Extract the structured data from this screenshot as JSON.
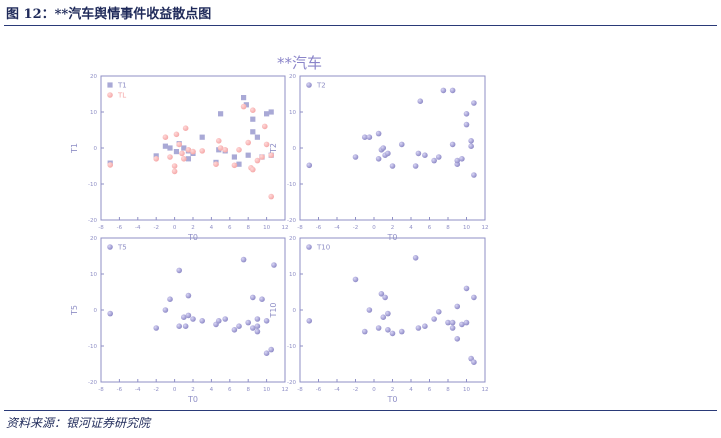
{
  "figure_title": "图 12：**汽车舆情事件收益散点图",
  "source_note": "资料来源：银河证券研究院",
  "suptitle": "**汽车",
  "colors": {
    "axis": "#8f8fc6",
    "marker": "#8a86c4",
    "marker_light": "#b0acdf",
    "T1": "#a9a9d6",
    "TL": "#f4a6a6"
  },
  "chart_data": [
    {
      "type": "scatter",
      "xlabel": "T0",
      "ylabel": "T1",
      "xlim": [
        -8,
        12
      ],
      "ylim": [
        -20,
        20
      ],
      "xticks": [
        "-8",
        "-6",
        "-4",
        "-2",
        "0",
        "2",
        "4",
        "6",
        "8",
        "10",
        "12"
      ],
      "yticks": [
        "-20",
        "-10",
        "0",
        "10",
        "20"
      ],
      "legend": "top-left",
      "series": [
        {
          "name": "T1",
          "marker": "square",
          "color": "#a9a9d6",
          "points": [
            [
              -7,
              -4.2
            ],
            [
              -2,
              -2.2
            ],
            [
              -1,
              0.5
            ],
            [
              -0.5,
              0
            ],
            [
              0.2,
              -1
            ],
            [
              0.5,
              1.2
            ],
            [
              1,
              0
            ],
            [
              1.5,
              -3
            ],
            [
              1.5,
              -0.8
            ],
            [
              2,
              -1.5
            ],
            [
              3,
              3
            ],
            [
              4.5,
              -4
            ],
            [
              4.8,
              -0.5
            ],
            [
              5,
              9.5
            ],
            [
              5.5,
              -0.8
            ],
            [
              6.5,
              -2.5
            ],
            [
              7,
              -4.5
            ],
            [
              7.5,
              14
            ],
            [
              7.8,
              12
            ],
            [
              8,
              -2
            ],
            [
              8.5,
              8
            ],
            [
              8.5,
              4.5
            ],
            [
              9,
              3
            ],
            [
              9.5,
              -2.5
            ],
            [
              10,
              9.5
            ],
            [
              10.5,
              10
            ],
            [
              10.5,
              -2
            ]
          ]
        },
        {
          "name": "TL",
          "marker": "circle",
          "color": "#f4a6a6",
          "points": [
            [
              -7,
              -4.7
            ],
            [
              -2,
              -3
            ],
            [
              -1,
              3
            ],
            [
              -0.5,
              -2.5
            ],
            [
              0,
              -5
            ],
            [
              0,
              -6.5
            ],
            [
              0.2,
              3.8
            ],
            [
              0.5,
              1
            ],
            [
              0.8,
              -1.5
            ],
            [
              1,
              -3
            ],
            [
              1.2,
              5.5
            ],
            [
              1.5,
              -0.5
            ],
            [
              2,
              -1
            ],
            [
              3,
              -0.8
            ],
            [
              4.5,
              -4.5
            ],
            [
              4.8,
              2
            ],
            [
              5,
              0
            ],
            [
              5.5,
              -0.5
            ],
            [
              6.5,
              -4.8
            ],
            [
              7,
              -0.5
            ],
            [
              7.5,
              11.5
            ],
            [
              8,
              1.5
            ],
            [
              8.3,
              -5.5
            ],
            [
              8.5,
              -6
            ],
            [
              8.5,
              10.5
            ],
            [
              9,
              -3.5
            ],
            [
              9.5,
              -2.5
            ],
            [
              9.8,
              6
            ],
            [
              10,
              1
            ],
            [
              10.5,
              -2
            ],
            [
              10.5,
              -13.5
            ]
          ]
        }
      ]
    },
    {
      "type": "scatter",
      "xlabel": "T0",
      "ylabel": "T2",
      "xlim": [
        -8,
        12
      ],
      "ylim": [
        -20,
        20
      ],
      "xticks": [
        "-8",
        "-6",
        "-4",
        "-2",
        "0",
        "2",
        "4",
        "6",
        "8",
        "10",
        "12"
      ],
      "yticks": [
        "-20",
        "-10",
        "0",
        "10",
        "20"
      ],
      "legend": "top-left",
      "series": [
        {
          "name": "T2",
          "marker": "circle",
          "color": "#8a86c4",
          "points": [
            [
              -7,
              -4.8
            ],
            [
              -2,
              -2.5
            ],
            [
              -1,
              3
            ],
            [
              -0.5,
              3
            ],
            [
              0.5,
              -3
            ],
            [
              0.5,
              4
            ],
            [
              0.8,
              -0.5
            ],
            [
              1,
              0
            ],
            [
              1.2,
              -2
            ],
            [
              1.5,
              -1.5
            ],
            [
              2,
              -5
            ],
            [
              3,
              1
            ],
            [
              4.5,
              -5
            ],
            [
              4.8,
              -1.5
            ],
            [
              5,
              13
            ],
            [
              5.5,
              -2
            ],
            [
              6.5,
              -3.5
            ],
            [
              7,
              -2.5
            ],
            [
              7.5,
              16
            ],
            [
              8.5,
              16
            ],
            [
              8.5,
              1
            ],
            [
              9,
              -4.5
            ],
            [
              9,
              -3.5
            ],
            [
              9.5,
              -3
            ],
            [
              10,
              6.5
            ],
            [
              10,
              9.5
            ],
            [
              10.5,
              2
            ],
            [
              10.5,
              0.5
            ],
            [
              10.8,
              -7.5
            ],
            [
              10.8,
              12.5
            ]
          ]
        }
      ]
    },
    {
      "type": "scatter",
      "xlabel": "T0",
      "ylabel": "T5",
      "xlim": [
        -8,
        12
      ],
      "ylim": [
        -20,
        20
      ],
      "xticks": [
        "-8",
        "-6",
        "-4",
        "-2",
        "0",
        "2",
        "4",
        "6",
        "8",
        "10",
        "12"
      ],
      "yticks": [
        "-20",
        "-10",
        "0",
        "10",
        "20"
      ],
      "legend": "top-left",
      "series": [
        {
          "name": "T5",
          "marker": "circle",
          "color": "#8a86c4",
          "points": [
            [
              -7,
              -1
            ],
            [
              -2,
              -5
            ],
            [
              -1,
              0
            ],
            [
              -0.5,
              3
            ],
            [
              0.5,
              -4.5
            ],
            [
              0.5,
              11
            ],
            [
              1,
              -2
            ],
            [
              1.2,
              -4.5
            ],
            [
              1.5,
              4
            ],
            [
              1.5,
              -1.5
            ],
            [
              2,
              -2.5
            ],
            [
              3,
              -3
            ],
            [
              4.5,
              -4
            ],
            [
              4.8,
              -3
            ],
            [
              5.5,
              -2.5
            ],
            [
              6.5,
              -5.5
            ],
            [
              7,
              -4.5
            ],
            [
              7.5,
              14
            ],
            [
              8,
              -3.5
            ],
            [
              8.5,
              -5
            ],
            [
              8.5,
              3.5
            ],
            [
              9,
              -2.5
            ],
            [
              9,
              -4.5
            ],
            [
              9,
              -6
            ],
            [
              9.5,
              3
            ],
            [
              10,
              -3
            ],
            [
              10,
              -12
            ],
            [
              10.5,
              -11
            ],
            [
              10.8,
              12.5
            ]
          ]
        }
      ]
    },
    {
      "type": "scatter",
      "xlabel": "T0",
      "ylabel": "T10",
      "xlim": [
        -8,
        12
      ],
      "ylim": [
        -20,
        20
      ],
      "xticks": [
        "-8",
        "-6",
        "-4",
        "-2",
        "0",
        "2",
        "4",
        "6",
        "8",
        "10",
        "12"
      ],
      "yticks": [
        "-20",
        "-10",
        "0",
        "10",
        "20"
      ],
      "legend": "top-left",
      "series": [
        {
          "name": "T10",
          "marker": "circle",
          "color": "#8a86c4",
          "points": [
            [
              -7,
              -3
            ],
            [
              -2,
              8.5
            ],
            [
              -1,
              -6
            ],
            [
              -0.5,
              0
            ],
            [
              0.5,
              -5
            ],
            [
              0.8,
              4.5
            ],
            [
              1,
              -2
            ],
            [
              1.2,
              3.5
            ],
            [
              1.5,
              -5.5
            ],
            [
              1.5,
              -1
            ],
            [
              2,
              -6.5
            ],
            [
              3,
              -6
            ],
            [
              4.5,
              14.5
            ],
            [
              4.8,
              -5
            ],
            [
              5.5,
              -4.5
            ],
            [
              6.5,
              -2.5
            ],
            [
              7,
              -0.5
            ],
            [
              8,
              -3.5
            ],
            [
              8.5,
              -5
            ],
            [
              8.5,
              -3.5
            ],
            [
              9,
              1
            ],
            [
              9,
              -8
            ],
            [
              9.5,
              -4
            ],
            [
              10,
              6
            ],
            [
              10,
              -3.5
            ],
            [
              10.5,
              -13.5
            ],
            [
              10.8,
              -14.5
            ],
            [
              10.8,
              3.5
            ]
          ]
        }
      ]
    }
  ]
}
